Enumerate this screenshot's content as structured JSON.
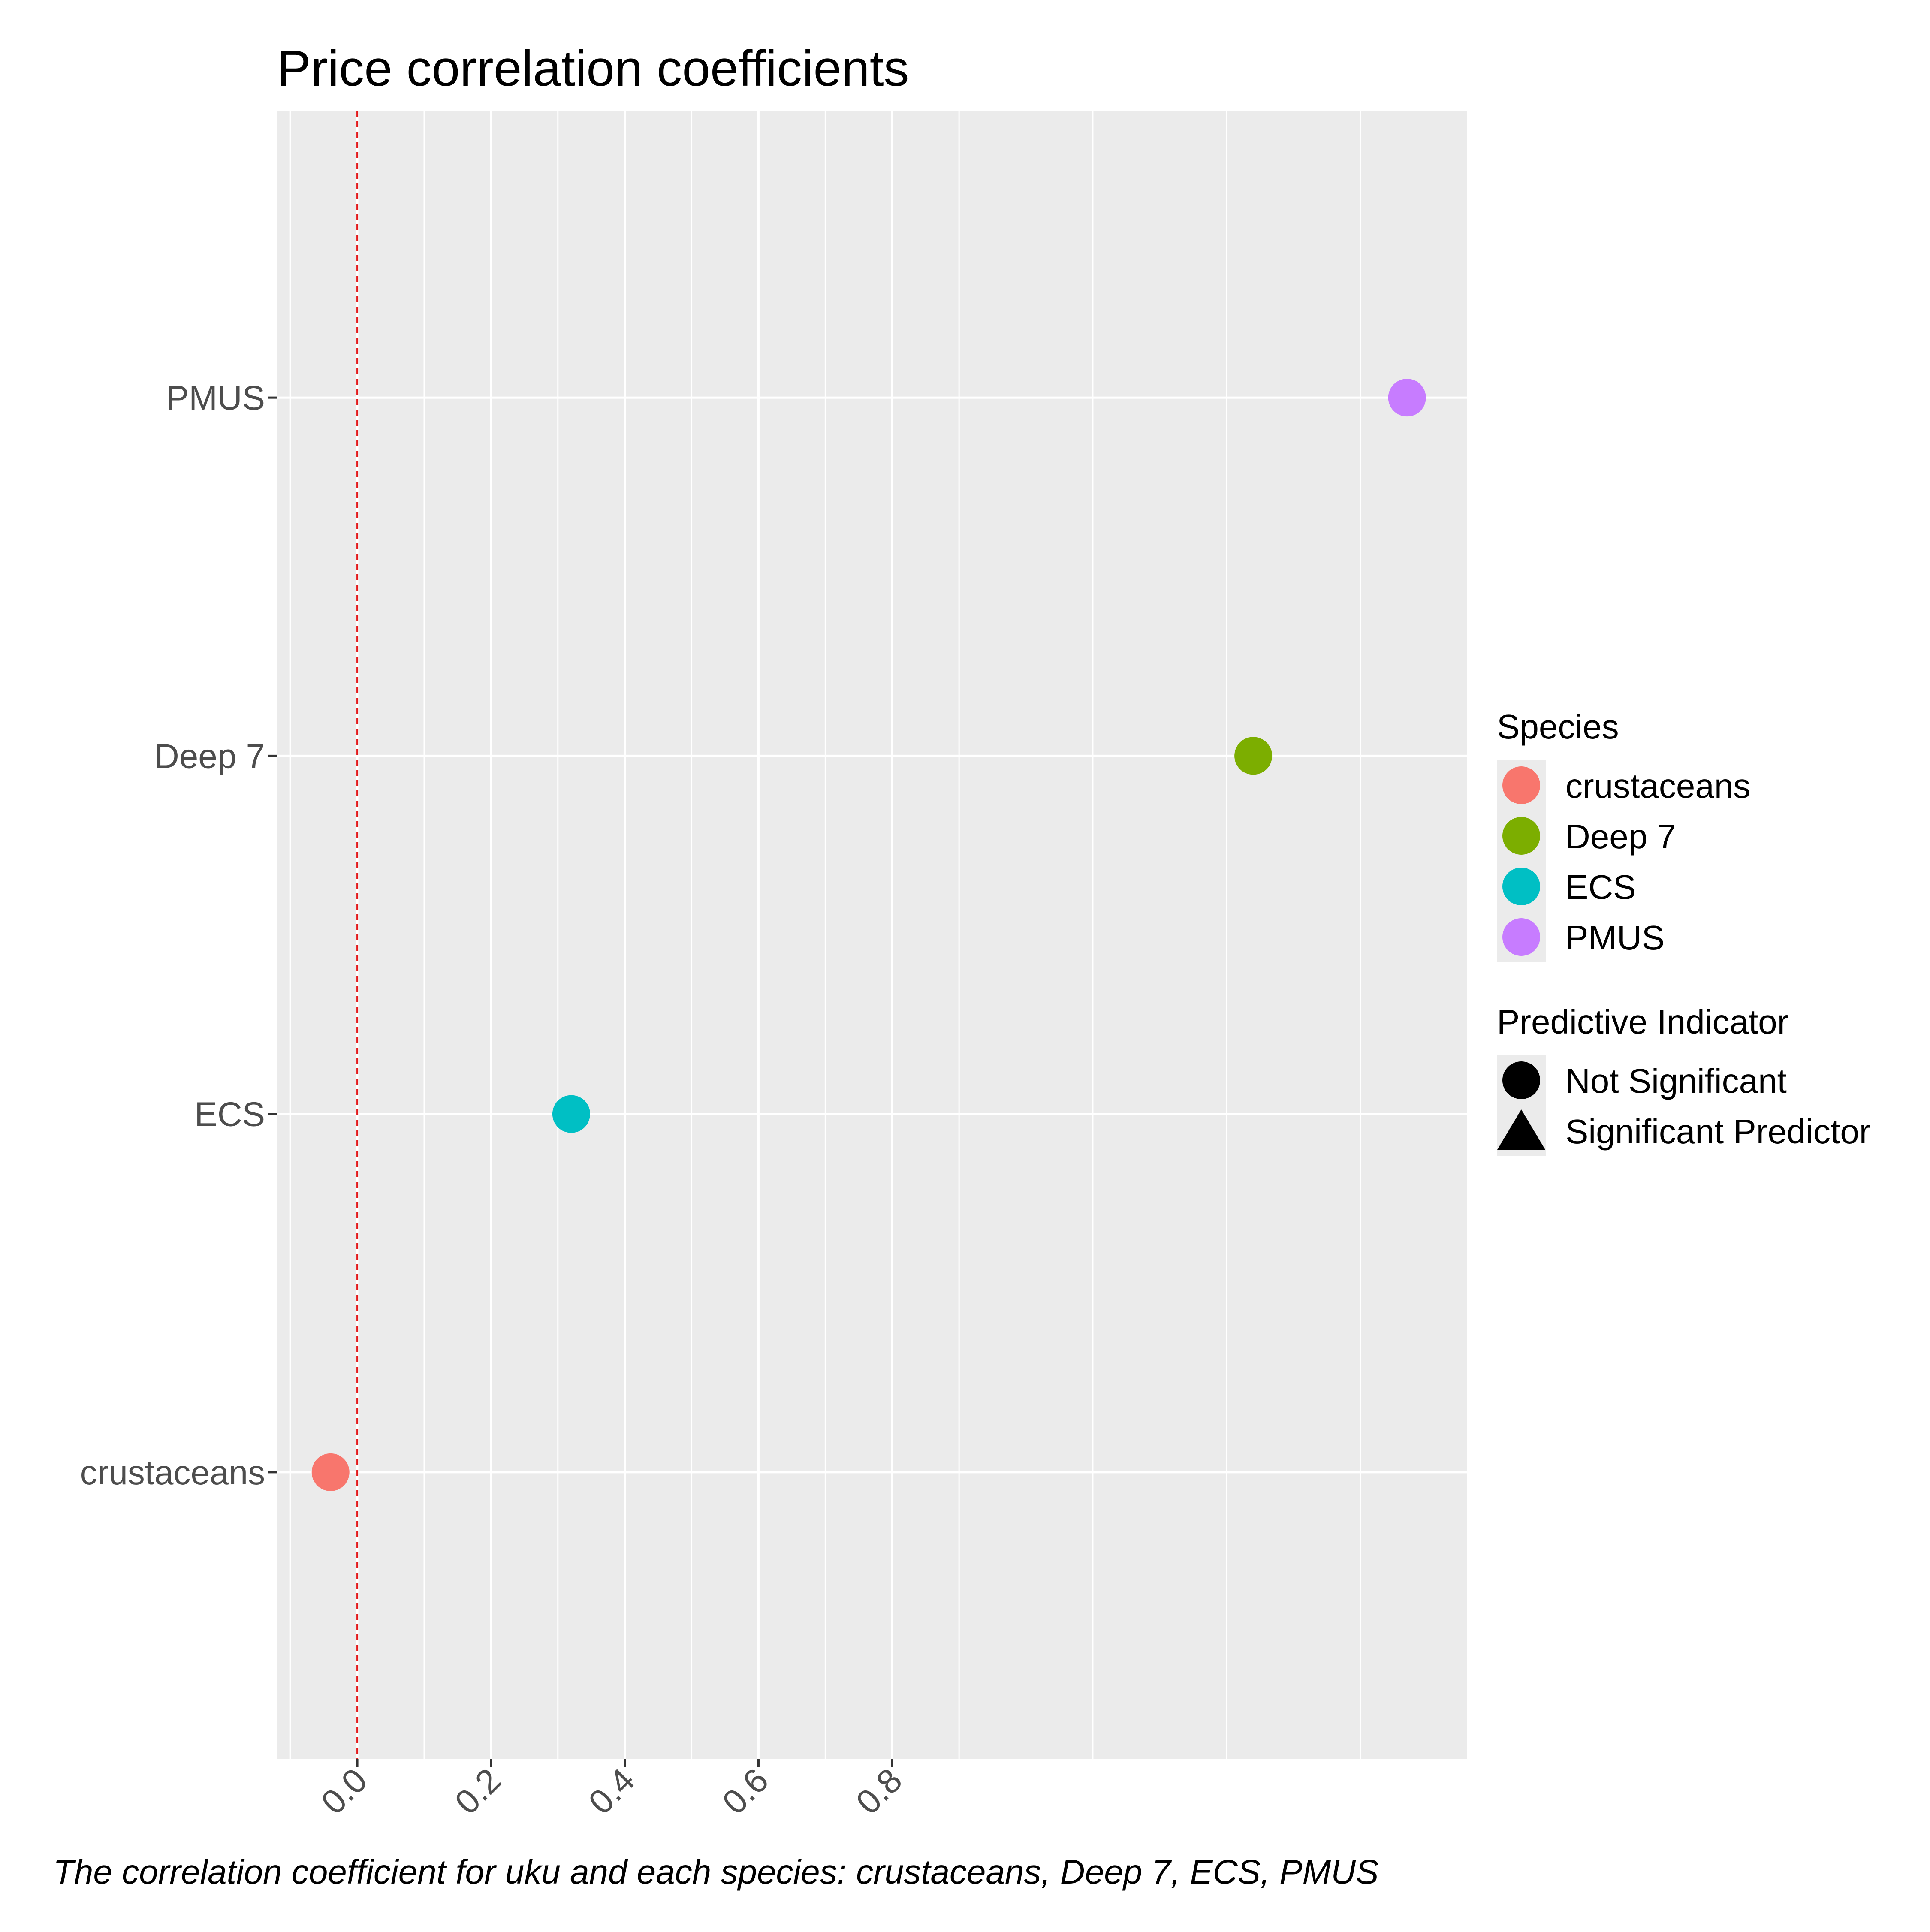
{
  "chart_data": {
    "type": "scatter",
    "title": "Price correlation coefficients",
    "caption": "The correlation coefficient for uku and each species: crustaceans, Deep 7, ECS, PMUS",
    "xlabel": "",
    "ylabel": "",
    "xlim": [
      -0.12,
      1.66
    ],
    "x_ticks": [
      "0.0",
      "0.2",
      "0.4",
      "0.6",
      "0.8"
    ],
    "x_tick_values": [
      0.0,
      0.2,
      0.4,
      0.6,
      0.8
    ],
    "categories": [
      "crustaceans",
      "ECS",
      "Deep 7",
      "PMUS"
    ],
    "reference_line": {
      "x": 0,
      "color": "#e31a1c",
      "style": "dashed"
    },
    "grid": true,
    "panel_background": "#ebebeb",
    "points": [
      {
        "species": "crustaceans",
        "x": -0.04,
        "color": "#f8766d",
        "shape": "circle"
      },
      {
        "species": "ECS",
        "x": 0.32,
        "color": "#00bfc4",
        "shape": "circle"
      },
      {
        "species": "Deep 7",
        "x": 1.34,
        "color": "#7cae00",
        "shape": "circle"
      },
      {
        "species": "PMUS",
        "x": 1.57,
        "color": "#c77cff",
        "shape": "circle"
      }
    ],
    "legend": {
      "placement": "right",
      "species_title": "Species",
      "species_items": [
        {
          "label": "crustaceans",
          "color": "#f8766d"
        },
        {
          "label": "Deep 7",
          "color": "#7cae00"
        },
        {
          "label": "ECS",
          "color": "#00bfc4"
        },
        {
          "label": "PMUS",
          "color": "#c77cff"
        }
      ],
      "indicator_title": "Predictive Indicator",
      "indicator_items": [
        {
          "label": "Not Significant",
          "shape": "circle"
        },
        {
          "label": "Significant Predictor",
          "shape": "triangle"
        }
      ]
    }
  }
}
